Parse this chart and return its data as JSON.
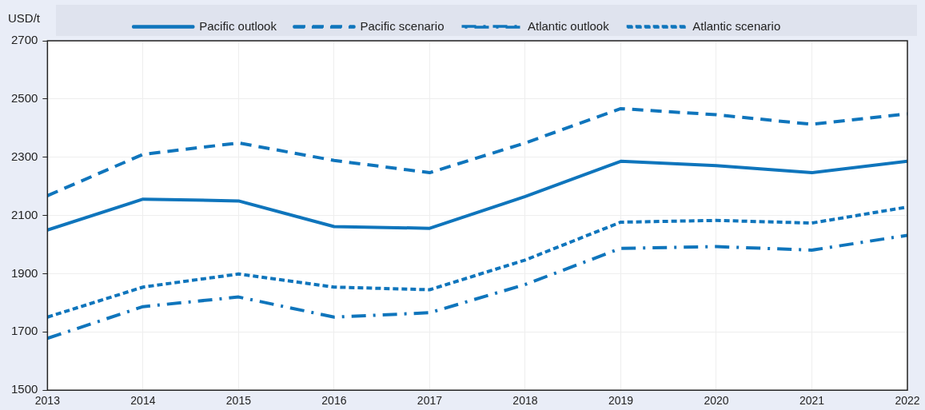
{
  "chart_data": {
    "type": "line",
    "ylabel": "USD/t",
    "x": [
      2013,
      2014,
      2015,
      2016,
      2017,
      2018,
      2019,
      2020,
      2021,
      2022
    ],
    "series": [
      {
        "name": "Pacific outlook",
        "color": "#0f75bc",
        "line_style": "solid",
        "values": [
          2050,
          2156,
          2150,
          2062,
          2056,
          2165,
          2286,
          2271,
          2247,
          2286
        ]
      },
      {
        "name": "Pacific scenario",
        "color": "#0f75bc",
        "line_style": "dashed",
        "values": [
          2168,
          2310,
          2349,
          2289,
          2247,
          2349,
          2467,
          2446,
          2413,
          2449
        ]
      },
      {
        "name": "Atlantic outlook",
        "color": "#0f75bc",
        "line_style": "dashdot",
        "values": [
          1678,
          1787,
          1820,
          1751,
          1766,
          1863,
          1987,
          1993,
          1981,
          2032
        ]
      },
      {
        "name": "Atlantic scenario",
        "color": "#0f75bc",
        "line_style": "dotted",
        "values": [
          1751,
          1854,
          1899,
          1854,
          1845,
          1947,
          2077,
          2083,
          2074,
          2129
        ]
      }
    ],
    "xlim": [
      2013,
      2022
    ],
    "xticks": [
      2013,
      2014,
      2015,
      2016,
      2017,
      2018,
      2019,
      2020,
      2021,
      2022
    ],
    "ylim": [
      1500,
      2700
    ],
    "yticks": [
      1500,
      1700,
      1900,
      2100,
      2300,
      2500,
      2700
    ],
    "grid": true,
    "legend": "top",
    "marker": "none"
  }
}
